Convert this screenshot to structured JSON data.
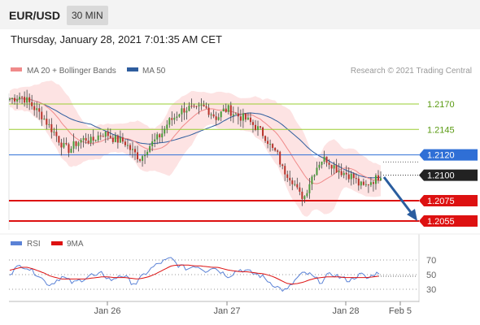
{
  "header": {
    "pair": "EUR/USD",
    "timeframe": "30 MIN",
    "datetime": "Thursday, January 28, 2021 7:01:35 AM CET"
  },
  "legend": {
    "ma20": "MA 20 + Bollinger Bands",
    "ma50": "MA 50",
    "copyright": "Research © 2021 Trading Central",
    "rsi": "RSI",
    "rsi_ma": "9MA"
  },
  "colors": {
    "ma20": "#f08a8a",
    "ma50": "#2e5d9e",
    "bollinger_fill": "#fde3e3",
    "resistance": "#9acd32",
    "pivot": "#2f6fd6",
    "support": "#dd1111",
    "last_price": "#222222",
    "rsi": "#5b82d6",
    "rsi_ma": "#dd1111",
    "arrow": "#2a5d9f"
  },
  "chart_data": [
    {
      "type": "candlestick",
      "title": "EUR/USD 30 MIN",
      "ylim": [
        1.2035,
        1.2195
      ],
      "x_ticks": [
        "Jan 26",
        "Jan 27",
        "Jan 28",
        "Feb 5"
      ],
      "levels": [
        {
          "value": 1.217,
          "label": "1.2170",
          "kind": "resistance"
        },
        {
          "value": 1.2145,
          "label": "1.2145",
          "kind": "resistance"
        },
        {
          "value": 1.212,
          "label": "1.2120",
          "kind": "pivot"
        },
        {
          "value": 1.2075,
          "label": "1.2075",
          "kind": "support"
        },
        {
          "value": 1.2055,
          "label": "1.2055",
          "kind": "support"
        }
      ],
      "last_price": {
        "value": 1.21,
        "label": "1.2100"
      },
      "close_path": [
        1.2175,
        1.2176,
        1.2178,
        1.2174,
        1.2169,
        1.2163,
        1.2158,
        1.215,
        1.2143,
        1.2135,
        1.2127,
        1.2125,
        1.2131,
        1.2134,
        1.2136,
        1.2133,
        1.2138,
        1.2141,
        1.214,
        1.2136,
        1.2134,
        1.2133,
        1.2126,
        1.2121,
        1.2116,
        1.2126,
        1.2131,
        1.2136,
        1.2142,
        1.2152,
        1.2156,
        1.2162,
        1.2165,
        1.2166,
        1.2163,
        1.2167,
        1.2166,
        1.2161,
        1.2156,
        1.2163,
        1.2165,
        1.2161,
        1.2158,
        1.2156,
        1.2152,
        1.2148,
        1.2143,
        1.2137,
        1.2126,
        1.2121,
        1.2106,
        1.2101,
        1.2094,
        1.2081,
        1.2079,
        1.2094,
        1.2106,
        1.2115,
        1.2116,
        1.2111,
        1.2106,
        1.2103,
        1.2101,
        1.2098,
        1.2091,
        1.2088,
        1.2094,
        1.2096,
        1.2101
      ]
    },
    {
      "type": "line",
      "title": "RSI",
      "ylim": [
        20,
        80
      ],
      "y_ticks": [
        70,
        50,
        30
      ],
      "series": [
        {
          "name": "RSI",
          "values": [
            52,
            58,
            63,
            60,
            54,
            50,
            41,
            36,
            42,
            47,
            43,
            38,
            42,
            45,
            50,
            47,
            52,
            45,
            42,
            50,
            47,
            40,
            38,
            48,
            55,
            61,
            66,
            69,
            72,
            64,
            60,
            58,
            63,
            60,
            55,
            61,
            57,
            52,
            48,
            54,
            57,
            55,
            52,
            50,
            46,
            40,
            35,
            30,
            28,
            38,
            47,
            52,
            50,
            44,
            40,
            48,
            51,
            47,
            44,
            42,
            48,
            50,
            44,
            50,
            53
          ]
        },
        {
          "name": "9MA",
          "values": [
            56,
            58,
            60,
            60,
            58,
            55,
            52,
            48,
            46,
            44,
            44,
            44,
            44,
            44,
            45,
            46,
            47,
            47,
            46,
            46,
            46,
            45,
            44,
            45,
            47,
            50,
            54,
            58,
            62,
            63,
            63,
            63,
            62,
            62,
            61,
            60,
            60,
            58,
            56,
            55,
            54,
            54,
            53,
            52,
            51,
            49,
            46,
            42,
            38,
            37,
            38,
            40,
            43,
            45,
            46,
            47,
            47,
            47,
            46,
            46,
            46,
            46,
            46,
            47,
            48
          ]
        }
      ]
    }
  ]
}
